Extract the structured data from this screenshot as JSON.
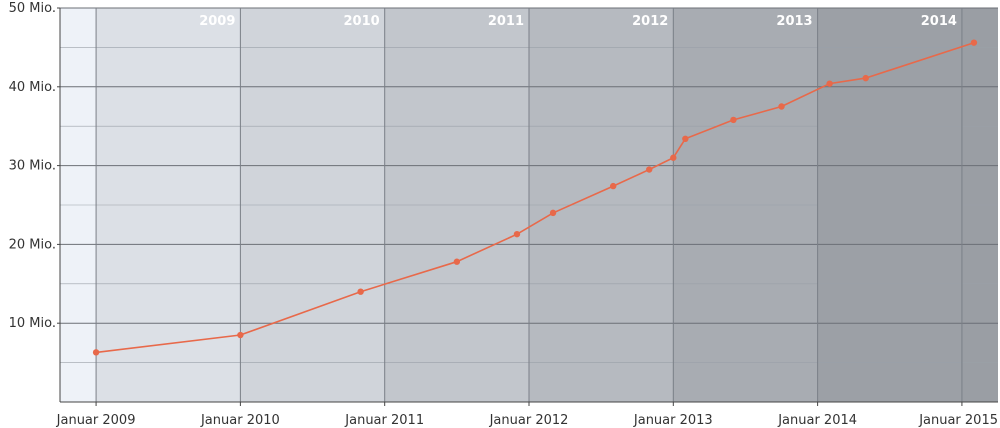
{
  "chart_data": {
    "type": "line",
    "title": "",
    "xlabel": "",
    "ylabel": "",
    "y_tick_labels": [
      "10 Mio.",
      "20 Mio.",
      "30 Mio.",
      "40 Mio.",
      "50 Mio."
    ],
    "y_tick_values": [
      10,
      20,
      30,
      40,
      50
    ],
    "ylim": [
      0,
      50
    ],
    "x_tick_labels": [
      "Januar 2009",
      "Januar 2010",
      "Januar 2011",
      "Januar 2012",
      "Januar 2013",
      "Januar 2014",
      "Januar 2015"
    ],
    "x_tick_values": [
      "2009-01",
      "2010-01",
      "2011-01",
      "2012-01",
      "2013-01",
      "2014-01",
      "2015-01"
    ],
    "xlim": [
      "2008-10",
      "2015-04"
    ],
    "year_bands": [
      "2009",
      "2010",
      "2011",
      "2012",
      "2013",
      "2014"
    ],
    "grid": true,
    "series": [
      {
        "color": "#e8694a",
        "points": [
          {
            "x": "2009-01",
            "y": 6.3
          },
          {
            "x": "2010-01",
            "y": 8.5
          },
          {
            "x": "2010-11",
            "y": 14.0
          },
          {
            "x": "2011-07",
            "y": 17.8
          },
          {
            "x": "2011-12",
            "y": 21.3
          },
          {
            "x": "2012-03",
            "y": 24.0
          },
          {
            "x": "2012-08",
            "y": 27.4
          },
          {
            "x": "2012-11",
            "y": 29.5
          },
          {
            "x": "2013-01",
            "y": 31.0
          },
          {
            "x": "2013-02",
            "y": 33.4
          },
          {
            "x": "2013-06",
            "y": 35.8
          },
          {
            "x": "2013-10",
            "y": 37.5
          },
          {
            "x": "2014-02",
            "y": 40.4
          },
          {
            "x": "2014-05",
            "y": 41.1
          },
          {
            "x": "2015-02",
            "y": 45.6
          }
        ]
      }
    ]
  }
}
